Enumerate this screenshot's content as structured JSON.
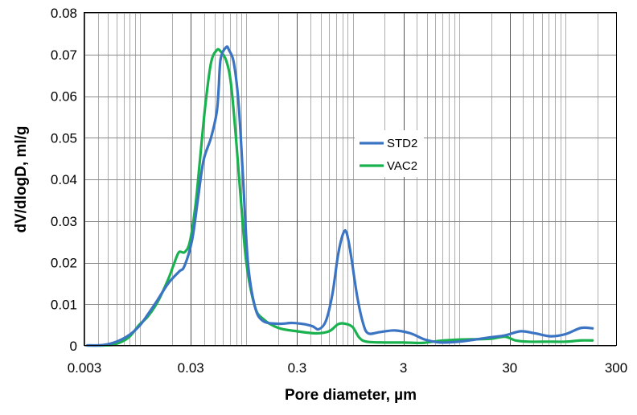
{
  "chart_data": {
    "type": "line",
    "title": "",
    "xlabel": "Pore diameter, µm",
    "ylabel": "dV/dlogD, ml/g",
    "x_scale": "log",
    "xlim": [
      0.003,
      300
    ],
    "ylim": [
      0,
      0.08
    ],
    "x_ticks": [
      0.003,
      0.03,
      0.3,
      3,
      30,
      300
    ],
    "x_tick_labels": [
      "0.003",
      "0.03",
      "0.3",
      "3",
      "30",
      "300"
    ],
    "y_ticks": [
      0,
      0.01,
      0.02,
      0.03,
      0.04,
      0.05,
      0.06,
      0.07,
      0.08
    ],
    "y_tick_labels": [
      "0",
      "0.01",
      "0.02",
      "0.03",
      "0.04",
      "0.05",
      "0.06",
      "0.07",
      "0.08"
    ],
    "grid": true,
    "legend_position": "center-right",
    "series": [
      {
        "name": "STD2",
        "color": "#3a74c2",
        "points": [
          [
            0.0032,
            0.0001
          ],
          [
            0.0045,
            0.0002
          ],
          [
            0.006,
            0.001
          ],
          [
            0.0078,
            0.0025
          ],
          [
            0.0098,
            0.0047
          ],
          [
            0.0118,
            0.0075
          ],
          [
            0.0146,
            0.011
          ],
          [
            0.0184,
            0.015
          ],
          [
            0.0232,
            0.0178
          ],
          [
            0.0262,
            0.0192
          ],
          [
            0.0309,
            0.0255
          ],
          [
            0.0349,
            0.035
          ],
          [
            0.0395,
            0.0445
          ],
          [
            0.0465,
            0.05
          ],
          [
            0.0525,
            0.056
          ],
          [
            0.0548,
            0.0615
          ],
          [
            0.0573,
            0.069
          ],
          [
            0.0647,
            0.0718
          ],
          [
            0.0688,
            0.071
          ],
          [
            0.0762,
            0.068
          ],
          [
            0.0846,
            0.058
          ],
          [
            0.0932,
            0.04
          ],
          [
            0.1034,
            0.02
          ],
          [
            0.1201,
            0.0095
          ],
          [
            0.143,
            0.006
          ],
          [
            0.2,
            0.0053
          ],
          [
            0.27,
            0.0055
          ],
          [
            0.35,
            0.0052
          ],
          [
            0.42,
            0.0047
          ],
          [
            0.48,
            0.004
          ],
          [
            0.56,
            0.006
          ],
          [
            0.645,
            0.0125
          ],
          [
            0.73,
            0.022
          ],
          [
            0.82,
            0.0272
          ],
          [
            0.88,
            0.027
          ],
          [
            0.96,
            0.022
          ],
          [
            1.1,
            0.012
          ],
          [
            1.25,
            0.0055
          ],
          [
            1.4,
            0.003
          ],
          [
            1.8,
            0.0033
          ],
          [
            2.5,
            0.0037
          ],
          [
            3.5,
            0.003
          ],
          [
            4.8,
            0.0015
          ],
          [
            6.7,
            0.0008
          ],
          [
            10,
            0.001
          ],
          [
            14,
            0.0015
          ],
          [
            19,
            0.002
          ],
          [
            27,
            0.0025
          ],
          [
            38,
            0.0035
          ],
          [
            52,
            0.003
          ],
          [
            73,
            0.0023
          ],
          [
            100,
            0.0028
          ],
          [
            140,
            0.0043
          ],
          [
            180,
            0.0042
          ]
        ]
      },
      {
        "name": "VAC2",
        "color": "#19b24e",
        "points": [
          [
            0.0032,
            0.0001
          ],
          [
            0.0045,
            0.0001
          ],
          [
            0.006,
            0.0005
          ],
          [
            0.0078,
            0.002
          ],
          [
            0.0098,
            0.005
          ],
          [
            0.0118,
            0.007
          ],
          [
            0.0146,
            0.0105
          ],
          [
            0.0184,
            0.016
          ],
          [
            0.0208,
            0.0196
          ],
          [
            0.0232,
            0.0225
          ],
          [
            0.0262,
            0.0225
          ],
          [
            0.0294,
            0.025
          ],
          [
            0.0333,
            0.034
          ],
          [
            0.0367,
            0.045
          ],
          [
            0.0412,
            0.058
          ],
          [
            0.0465,
            0.068
          ],
          [
            0.0525,
            0.071
          ],
          [
            0.057,
            0.0708
          ],
          [
            0.0647,
            0.0685
          ],
          [
            0.0716,
            0.063
          ],
          [
            0.0798,
            0.05
          ],
          [
            0.0888,
            0.035
          ],
          [
            0.1,
            0.02
          ],
          [
            0.1201,
            0.0095
          ],
          [
            0.143,
            0.0065
          ],
          [
            0.2,
            0.0043
          ],
          [
            0.3,
            0.0035
          ],
          [
            0.45,
            0.003
          ],
          [
            0.6,
            0.0035
          ],
          [
            0.73,
            0.0052
          ],
          [
            0.85,
            0.0053
          ],
          [
            1.0,
            0.0045
          ],
          [
            1.15,
            0.002
          ],
          [
            1.35,
            0.001
          ],
          [
            2,
            0.0008
          ],
          [
            3,
            0.0008
          ],
          [
            4.5,
            0.0007
          ],
          [
            6.5,
            0.0012
          ],
          [
            10,
            0.0015
          ],
          [
            15,
            0.0016
          ],
          [
            20,
            0.0017
          ],
          [
            27,
            0.0022
          ],
          [
            34,
            0.0013
          ],
          [
            45,
            0.001
          ],
          [
            70,
            0.001
          ],
          [
            100,
            0.001
          ],
          [
            140,
            0.0013
          ],
          [
            180,
            0.0013
          ]
        ]
      }
    ]
  }
}
